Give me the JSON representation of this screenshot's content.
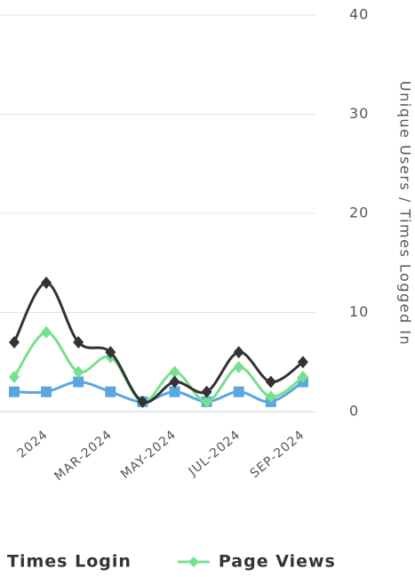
{
  "chart_data": {
    "type": "line",
    "y_axis_label": "Unique Users / Times Logged In",
    "categories": [
      null,
      "2024",
      null,
      "MAR-2024",
      null,
      "MAY-2024",
      null,
      "JUL-2024",
      null,
      "SEP-2024"
    ],
    "series": [
      {
        "name": "Times Login",
        "color": "#333333",
        "marker": "diamond",
        "values": [
          7,
          13,
          7,
          6,
          1,
          3,
          2,
          6,
          3,
          5
        ]
      },
      {
        "name": "Page Views",
        "color": "#77e08c",
        "marker": "diamond",
        "values": [
          3.5,
          8,
          4,
          5.5,
          1,
          4,
          1,
          4.5,
          1.5,
          3.5
        ]
      },
      {
        "color": "#5aa6e0",
        "marker": "square",
        "values": [
          2,
          2,
          3,
          2,
          1,
          2,
          1,
          2,
          1,
          3
        ]
      }
    ],
    "ylim": [
      0,
      40
    ],
    "yticks": [
      0,
      10,
      20,
      30,
      40
    ],
    "grid": true
  }
}
